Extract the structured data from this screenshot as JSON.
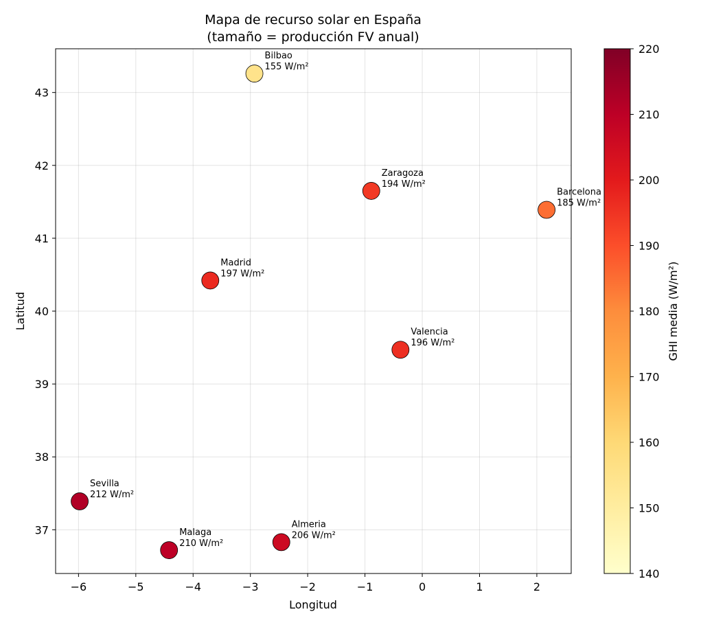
{
  "chart_data": {
    "type": "scatter",
    "title": "Mapa de recurso solar en España",
    "subtitle": "(tamaño = producción FV anual)",
    "xlabel": "Longitud",
    "ylabel": "Latitud",
    "xlim": [
      -6.4,
      2.6
    ],
    "ylim": [
      36.4,
      43.6
    ],
    "xticks": [
      -6,
      -5,
      -4,
      -3,
      -2,
      -1,
      0,
      1,
      2
    ],
    "xtick_labels": [
      "−6",
      "−5",
      "−4",
      "−3",
      "−2",
      "−1",
      "0",
      "1",
      "2"
    ],
    "yticks": [
      37,
      38,
      39,
      40,
      41,
      42,
      43
    ],
    "ytick_labels": [
      "37",
      "38",
      "39",
      "40",
      "41",
      "42",
      "43"
    ],
    "grid": true,
    "colorbar": {
      "label": "GHI media (W/m²)",
      "min": 140,
      "max": 220,
      "ticks": [
        140,
        150,
        160,
        170,
        180,
        190,
        200,
        210,
        220
      ],
      "tick_labels": [
        "140",
        "150",
        "160",
        "170",
        "180",
        "190",
        "200",
        "210",
        "220"
      ],
      "colormap": "YlOrRd"
    },
    "points": [
      {
        "city": "Bilbao",
        "x": -2.93,
        "y": 43.26,
        "ghi": 155,
        "label": "155 W/m²"
      },
      {
        "city": "Zaragoza",
        "x": -0.89,
        "y": 41.65,
        "ghi": 194,
        "label": "194 W/m²"
      },
      {
        "city": "Barcelona",
        "x": 2.17,
        "y": 41.39,
        "ghi": 185,
        "label": "185 W/m²"
      },
      {
        "city": "Madrid",
        "x": -3.7,
        "y": 40.42,
        "ghi": 197,
        "label": "197 W/m²"
      },
      {
        "city": "Valencia",
        "x": -0.38,
        "y": 39.47,
        "ghi": 196,
        "label": "196 W/m²"
      },
      {
        "city": "Sevilla",
        "x": -5.98,
        "y": 37.39,
        "ghi": 212,
        "label": "212 W/m²"
      },
      {
        "city": "Malaga",
        "x": -4.42,
        "y": 36.72,
        "ghi": 210,
        "label": "210 W/m²"
      },
      {
        "city": "Almeria",
        "x": -2.46,
        "y": 36.83,
        "ghi": 206,
        "label": "206 W/m²"
      }
    ]
  }
}
